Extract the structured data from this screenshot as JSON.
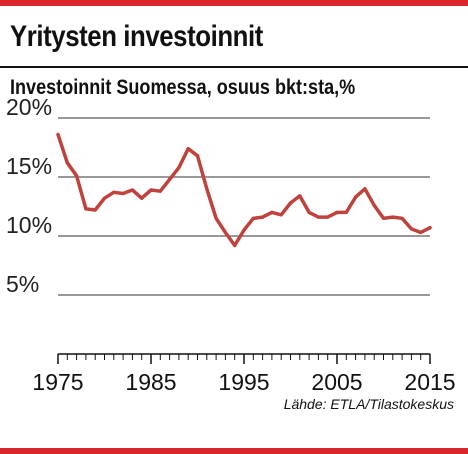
{
  "header": {
    "title": "Yritysten investoinnit",
    "subtitle": "Investoinnit Suomessa, osuus bkt:sta,%",
    "source": "Lähde: ETLA/Tilastokeskus",
    "accent_color": "#d9262b"
  },
  "chart_data": {
    "type": "line",
    "title": "Investoinnit Suomessa, osuus bkt:sta,%",
    "xlabel": "",
    "ylabel": "",
    "xlim": [
      1975,
      2015
    ],
    "ylim": [
      0,
      20
    ],
    "grid": "horizontal",
    "y_ticks": [
      {
        "value": 20,
        "label": "20%"
      },
      {
        "value": 15,
        "label": "15%"
      },
      {
        "value": 10,
        "label": "10%"
      },
      {
        "value": 5,
        "label": "5%"
      }
    ],
    "x_ticks": [
      {
        "value": 1975,
        "label": "1975"
      },
      {
        "value": 1985,
        "label": "1985"
      },
      {
        "value": 1995,
        "label": "1995"
      },
      {
        "value": 2005,
        "label": "2005"
      },
      {
        "value": 2015,
        "label": "2015"
      }
    ],
    "series": [
      {
        "color": "#c0423c",
        "x": [
          1975,
          1976,
          1977,
          1978,
          1979,
          1980,
          1981,
          1982,
          1983,
          1984,
          1985,
          1986,
          1987,
          1988,
          1989,
          1990,
          1991,
          1992,
          1993,
          1994,
          1995,
          1996,
          1997,
          1998,
          1999,
          2000,
          2001,
          2002,
          2003,
          2004,
          2005,
          2006,
          2007,
          2008,
          2009,
          2010,
          2011,
          2012,
          2013,
          2014,
          2015
        ],
        "values": [
          18.6,
          16.2,
          15.1,
          12.3,
          12.2,
          13.2,
          13.7,
          13.6,
          13.9,
          13.2,
          13.9,
          13.8,
          14.8,
          15.8,
          17.4,
          16.8,
          14.0,
          11.5,
          10.3,
          9.2,
          10.5,
          11.5,
          11.6,
          12.0,
          11.8,
          12.8,
          13.4,
          12.0,
          11.6,
          11.6,
          12.0,
          12.0,
          13.3,
          14.0,
          12.6,
          11.5,
          11.6,
          11.5,
          10.6,
          10.3,
          10.7
        ]
      }
    ]
  }
}
